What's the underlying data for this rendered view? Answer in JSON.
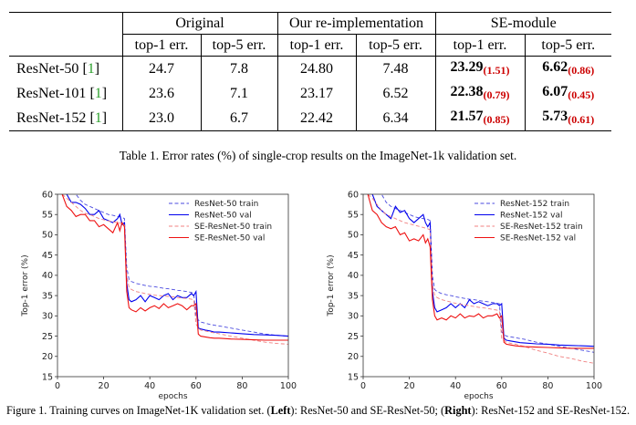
{
  "table": {
    "group_headers": [
      "Original",
      "Our re-implementation",
      "SE-module"
    ],
    "sub_headers": [
      "top-1 err.",
      "top-5 err.",
      "top-1 err.",
      "top-5 err.",
      "top-1 err.",
      "top-5 err."
    ],
    "rows": [
      {
        "model": "ResNet-50",
        "ref": "1",
        "orig_top1": "24.7",
        "orig_top5": "7.8",
        "re_top1": "24.80",
        "re_top5": "7.48",
        "se_top1": "23.29",
        "se_top1_delta": "(1.51)",
        "se_top5": "6.62",
        "se_top5_delta": "(0.86)"
      },
      {
        "model": "ResNet-101",
        "ref": "1",
        "orig_top1": "23.6",
        "orig_top5": "7.1",
        "re_top1": "23.17",
        "re_top5": "6.52",
        "se_top1": "22.38",
        "se_top1_delta": "(0.79)",
        "se_top5": "6.07",
        "se_top5_delta": "(0.45)"
      },
      {
        "model": "ResNet-152",
        "ref": "1",
        "orig_top1": "23.0",
        "orig_top5": "6.7",
        "re_top1": "22.42",
        "re_top5": "6.34",
        "se_top1": "21.57",
        "se_top1_delta": "(0.85)",
        "se_top5": "5.73",
        "se_top5_delta": "(0.61)"
      }
    ],
    "caption": "Table 1. Error rates (%) of single-crop results on the ImageNet-1k validation set."
  },
  "figure_caption": {
    "prefix": "Figure 1. Training curves on ImageNet-1K validation set. (",
    "left_word": "Left",
    "middle": "): ResNet-50 and SE-ResNet-50; (",
    "right_word": "Right",
    "suffix": "): ResNet-152 and SE-ResNet-152."
  },
  "chart_data": [
    {
      "type": "line",
      "xlabel": "epochs",
      "ylabel": "Top-1 error (%)",
      "xlim": [
        0,
        100
      ],
      "ylim": [
        15,
        60
      ],
      "xticks": [
        0,
        20,
        40,
        60,
        80,
        100
      ],
      "yticks": [
        15,
        20,
        25,
        30,
        35,
        40,
        45,
        50,
        55,
        60
      ],
      "legend_position": "top-right",
      "series": [
        {
          "name": "ResNet-50 train",
          "color": "#4a4adf",
          "dashed": true,
          "x": [
            2,
            4,
            6,
            8,
            10,
            12,
            14,
            16,
            18,
            20,
            22,
            24,
            26,
            28,
            29,
            30,
            31,
            32,
            34,
            36,
            38,
            40,
            42,
            44,
            46,
            48,
            50,
            52,
            54,
            56,
            58,
            59,
            60,
            61,
            62,
            64,
            66,
            68,
            70,
            75,
            80,
            85,
            90,
            95,
            100
          ],
          "y": [
            62,
            62,
            61,
            60,
            58.5,
            57.5,
            57,
            56.5,
            56,
            55.5,
            55,
            54.8,
            54.5,
            54.3,
            54,
            42,
            39,
            38.5,
            38,
            37.8,
            37.5,
            37.3,
            37.2,
            37,
            36.8,
            36.7,
            36.5,
            36.3,
            36.2,
            36,
            35.8,
            35.5,
            30,
            29,
            28.5,
            28.2,
            27.9,
            27.7,
            27.5,
            27,
            26.5,
            26,
            25.5,
            25.2,
            25
          ]
        },
        {
          "name": "ResNet-50 val",
          "color": "#0000ee",
          "dashed": false,
          "x": [
            2,
            4,
            6,
            8,
            10,
            12,
            14,
            16,
            18,
            20,
            22,
            24,
            26,
            27,
            28,
            29,
            30,
            31,
            32,
            34,
            36,
            38,
            40,
            42,
            44,
            46,
            48,
            50,
            52,
            54,
            56,
            58,
            59,
            60,
            61,
            62,
            64,
            66,
            68,
            70,
            75,
            80,
            85,
            90,
            95,
            100
          ],
          "y": [
            61,
            60,
            58,
            58,
            57.5,
            56.5,
            55,
            55,
            56,
            54,
            53.5,
            53,
            54,
            55,
            52.5,
            53,
            38,
            34,
            33.5,
            34,
            35,
            33.5,
            35,
            34.5,
            34,
            35,
            35.5,
            34,
            35,
            34.5,
            34.5,
            35.5,
            35,
            36,
            27,
            26.8,
            26.5,
            26.3,
            26,
            26,
            25.8,
            25.6,
            25.4,
            25.3,
            25.2,
            25
          ]
        },
        {
          "name": "SE-ResNet-50 train",
          "color": "#f08080",
          "dashed": true,
          "x": [
            2,
            4,
            6,
            8,
            10,
            12,
            14,
            16,
            18,
            20,
            22,
            24,
            26,
            28,
            29,
            30,
            31,
            32,
            34,
            36,
            38,
            40,
            42,
            44,
            46,
            48,
            50,
            52,
            54,
            56,
            58,
            59,
            60,
            61,
            62,
            64,
            66,
            68,
            70,
            75,
            80,
            85,
            90,
            95,
            100
          ],
          "y": [
            60,
            59,
            58,
            57,
            56,
            55.3,
            55,
            54.5,
            54,
            53.7,
            53.4,
            53.2,
            53,
            52.8,
            52.5,
            40,
            37,
            36.5,
            36,
            35.8,
            35.5,
            35.3,
            35.1,
            35,
            34.9,
            34.8,
            34.7,
            34.5,
            34.4,
            34.3,
            34.1,
            34,
            28,
            27,
            26.5,
            26.3,
            26,
            25.8,
            25.6,
            25,
            24.5,
            24,
            23.5,
            23.2,
            23
          ]
        },
        {
          "name": "SE-ResNet-50 val",
          "color": "#ee1111",
          "dashed": false,
          "x": [
            2,
            4,
            6,
            8,
            10,
            12,
            14,
            16,
            18,
            20,
            22,
            24,
            26,
            27,
            28,
            29,
            30,
            31,
            32,
            34,
            36,
            38,
            40,
            42,
            44,
            46,
            48,
            50,
            52,
            54,
            56,
            58,
            59,
            60,
            61,
            62,
            64,
            66,
            68,
            70,
            75,
            80,
            85,
            90,
            95,
            100
          ],
          "y": [
            60,
            57,
            56,
            54.5,
            55,
            55,
            53.5,
            53.5,
            52,
            52.5,
            51.5,
            50.5,
            53,
            51,
            53,
            52,
            36,
            32,
            31.5,
            31,
            32,
            31.2,
            32,
            32.5,
            31.8,
            33,
            32,
            32.5,
            33,
            32.5,
            31.5,
            32.5,
            32.5,
            33,
            25.5,
            25,
            24.8,
            24.6,
            24.5,
            24.5,
            24.3,
            24.2,
            24.1,
            24,
            24,
            24
          ]
        }
      ]
    },
    {
      "type": "line",
      "xlabel": "epochs",
      "ylabel": "Top-1 error (%)",
      "xlim": [
        0,
        100
      ],
      "ylim": [
        15,
        60
      ],
      "xticks": [
        0,
        20,
        40,
        60,
        80,
        100
      ],
      "yticks": [
        15,
        20,
        25,
        30,
        35,
        40,
        45,
        50,
        55,
        60
      ],
      "legend_position": "top-right",
      "series": [
        {
          "name": "ResNet-152 train",
          "color": "#4a4adf",
          "dashed": true,
          "x": [
            2,
            4,
            6,
            8,
            10,
            12,
            14,
            16,
            18,
            20,
            22,
            24,
            26,
            28,
            29,
            30,
            31,
            32,
            34,
            36,
            38,
            40,
            42,
            44,
            46,
            48,
            50,
            52,
            54,
            56,
            58,
            59,
            60,
            61,
            62,
            64,
            66,
            68,
            70,
            75,
            80,
            85,
            90,
            95,
            100
          ],
          "y": [
            62,
            62,
            61,
            60,
            58,
            57,
            56.5,
            56,
            55.5,
            55,
            54.5,
            54.2,
            54,
            53.8,
            53.5,
            40,
            36.5,
            36,
            35.5,
            35.2,
            35,
            34.7,
            34.5,
            34.3,
            34.1,
            34,
            33.8,
            33.6,
            33.5,
            33.3,
            33.1,
            33,
            26,
            25.5,
            25,
            24.8,
            24.6,
            24.4,
            24.2,
            23.5,
            23,
            22.5,
            22,
            21.5,
            21
          ]
        },
        {
          "name": "ResNet-152 val",
          "color": "#0000ee",
          "dashed": false,
          "x": [
            2,
            4,
            6,
            8,
            10,
            12,
            14,
            16,
            18,
            20,
            22,
            24,
            26,
            27,
            28,
            29,
            30,
            31,
            32,
            34,
            36,
            38,
            40,
            42,
            44,
            46,
            48,
            50,
            52,
            54,
            56,
            58,
            59,
            60,
            61,
            62,
            64,
            66,
            68,
            70,
            75,
            80,
            85,
            90,
            95,
            100
          ],
          "y": [
            61,
            60,
            57,
            56,
            55,
            54,
            57,
            55.5,
            56,
            54,
            53,
            54,
            55,
            53,
            52,
            53,
            36,
            32,
            31,
            31.5,
            32,
            33,
            32,
            33,
            32,
            34,
            33,
            33.5,
            33,
            32.5,
            33,
            33,
            32.5,
            33,
            24.5,
            24,
            23.8,
            23.6,
            23.4,
            23.3,
            23.1,
            23,
            22.8,
            22.7,
            22.6,
            22.5
          ]
        },
        {
          "name": "SE-ResNet-152 train",
          "color": "#f08080",
          "dashed": true,
          "x": [
            2,
            4,
            6,
            8,
            10,
            12,
            14,
            16,
            18,
            20,
            22,
            24,
            26,
            28,
            29,
            30,
            31,
            32,
            34,
            36,
            38,
            40,
            42,
            44,
            46,
            48,
            50,
            52,
            54,
            56,
            58,
            59,
            60,
            61,
            62,
            64,
            66,
            68,
            70,
            75,
            80,
            85,
            90,
            95,
            100
          ],
          "y": [
            60,
            59,
            57.5,
            56,
            55,
            54.5,
            54,
            53.5,
            53,
            52.7,
            52.4,
            52.1,
            51.8,
            51.5,
            51.2,
            38,
            35,
            34.5,
            34,
            33.7,
            33.4,
            33.1,
            32.9,
            32.7,
            32.5,
            32.3,
            32.1,
            32,
            31.8,
            31.6,
            31.4,
            31.2,
            24.5,
            24,
            23.5,
            23.2,
            23,
            22.7,
            22.4,
            21.5,
            20.8,
            20,
            19.5,
            18.8,
            18.3
          ]
        },
        {
          "name": "SE-ResNet-152 val",
          "color": "#ee1111",
          "dashed": false,
          "x": [
            2,
            4,
            6,
            8,
            10,
            12,
            14,
            16,
            18,
            20,
            22,
            24,
            26,
            27,
            28,
            29,
            30,
            31,
            32,
            34,
            36,
            38,
            40,
            42,
            44,
            46,
            48,
            50,
            52,
            54,
            56,
            58,
            59,
            60,
            61,
            62,
            64,
            66,
            68,
            70,
            75,
            80,
            85,
            90,
            95,
            100
          ],
          "y": [
            60,
            56,
            55,
            53,
            52,
            51.5,
            52,
            50,
            50.5,
            48.5,
            49,
            48.5,
            50,
            48,
            49,
            47,
            34,
            30,
            29,
            29.5,
            29,
            30,
            29.5,
            30.5,
            29.5,
            30,
            29.8,
            30.5,
            29.5,
            30,
            30,
            30.5,
            29.5,
            30,
            23.5,
            23,
            22.8,
            22.6,
            22.5,
            22.4,
            22.3,
            22.2,
            22.1,
            22,
            22,
            22
          ]
        }
      ]
    }
  ]
}
